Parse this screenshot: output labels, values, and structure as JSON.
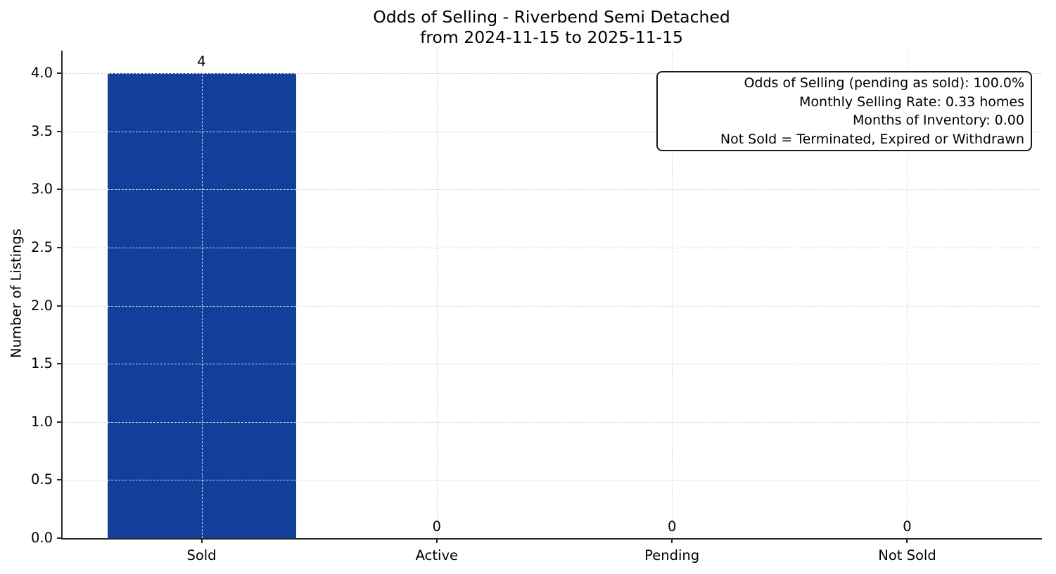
{
  "chart_data": {
    "type": "bar",
    "title": "Odds of Selling - Riverbend Semi Detached",
    "subtitle": "from 2024-11-15 to 2025-11-15",
    "ylabel": "Number of Listings",
    "xlabel": "",
    "categories": [
      "Sold",
      "Active",
      "Pending",
      "Not Sold"
    ],
    "values": [
      4,
      0,
      0,
      0
    ],
    "value_labels": [
      "4",
      "0",
      "0",
      "0"
    ],
    "bar_color": "#123f9a",
    "ylim": [
      0,
      4.19
    ],
    "ytick_labels": [
      "0.0",
      "0.5",
      "1.0",
      "1.5",
      "2.0",
      "2.5",
      "3.0",
      "3.5",
      "4.0"
    ],
    "grid": true,
    "legend_position": "none",
    "annotation_lines": [
      "Odds of Selling (pending as sold): 100.0%",
      "Monthly Selling Rate: 0.33 homes",
      "Months of Inventory: 0.00",
      "Not Sold = Terminated, Expired or Withdrawn"
    ],
    "colors": {
      "grid": "#d9d9d9",
      "spine": "#262626",
      "text": "#000000",
      "annotation_border": "#1a1a1a",
      "background": "#ffffff"
    }
  }
}
